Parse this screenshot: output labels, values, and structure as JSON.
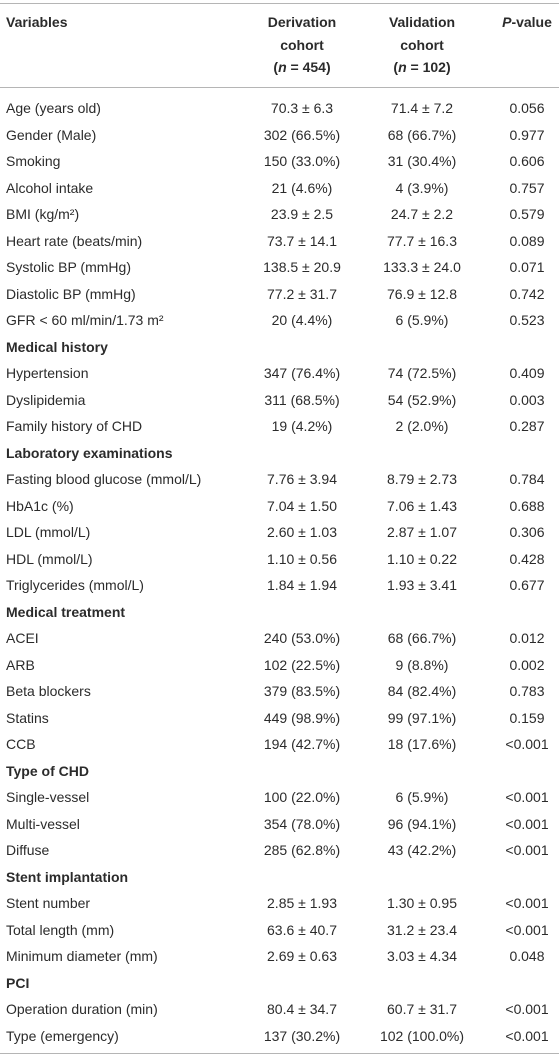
{
  "table": {
    "header": {
      "variables": "Variables",
      "derivation": {
        "line1": "Derivation",
        "line2": "cohort",
        "n_open": "(",
        "n": "n",
        "n_rest": " = 454)"
      },
      "validation": {
        "line1": "Validation",
        "line2": "cohort",
        "n_open": "(",
        "n": "n",
        "n_rest": " = 102)"
      },
      "pvalue": {
        "p": "P",
        "rest": "-value"
      }
    },
    "rows": [
      {
        "cells": [
          "Age (years old)",
          "70.3 ± 6.3",
          "71.4 ± 7.2",
          "0.056"
        ]
      },
      {
        "cells": [
          "Gender (Male)",
          "302 (66.5%)",
          "68 (66.7%)",
          "0.977"
        ]
      },
      {
        "cells": [
          "Smoking",
          "150 (33.0%)",
          "31 (30.4%)",
          "0.606"
        ]
      },
      {
        "cells": [
          "Alcohol intake",
          "21 (4.6%)",
          "4 (3.9%)",
          "0.757"
        ]
      },
      {
        "cells": [
          "BMI (kg/m²)",
          "23.9 ± 2.5",
          "24.7 ± 2.2",
          "0.579"
        ]
      },
      {
        "cells": [
          "Heart rate (beats/min)",
          "73.7 ± 14.1",
          "77.7 ± 16.3",
          "0.089"
        ]
      },
      {
        "cells": [
          "Systolic BP (mmHg)",
          "138.5 ± 20.9",
          "133.3 ± 24.0",
          "0.071"
        ]
      },
      {
        "cells": [
          "Diastolic BP (mmHg)",
          "77.2 ± 31.7",
          "76.9 ± 12.8",
          "0.742"
        ]
      },
      {
        "cells": [
          "GFR < 60 ml/min/1.73 m²",
          "20 (4.4%)",
          "6 (5.9%)",
          "0.523"
        ]
      },
      {
        "section": "Medical history"
      },
      {
        "cells": [
          "Hypertension",
          "347 (76.4%)",
          "74 (72.5%)",
          "0.409"
        ]
      },
      {
        "cells": [
          "Dyslipidemia",
          "311 (68.5%)",
          "54 (52.9%)",
          "0.003"
        ]
      },
      {
        "cells": [
          "Family history of CHD",
          "19 (4.2%)",
          "2 (2.0%)",
          "0.287"
        ]
      },
      {
        "section": "Laboratory examinations"
      },
      {
        "cells": [
          "Fasting blood glucose (mmol/L)",
          "7.76 ± 3.94",
          "8.79 ± 2.73",
          "0.784"
        ]
      },
      {
        "cells": [
          "HbA1c (%)",
          "7.04 ± 1.50",
          "7.06 ± 1.43",
          "0.688"
        ]
      },
      {
        "cells": [
          "LDL (mmol/L)",
          "2.60 ± 1.03",
          "2.87 ± 1.07",
          "0.306"
        ]
      },
      {
        "cells": [
          "HDL (mmol/L)",
          "1.10 ± 0.56",
          "1.10 ± 0.22",
          "0.428"
        ]
      },
      {
        "cells": [
          "Triglycerides (mmol/L)",
          "1.84 ± 1.94",
          "1.93 ± 3.41",
          "0.677"
        ]
      },
      {
        "section": "Medical treatment"
      },
      {
        "cells": [
          "ACEI",
          "240 (53.0%)",
          "68 (66.7%)",
          "0.012"
        ]
      },
      {
        "cells": [
          "ARB",
          "102 (22.5%)",
          "9 (8.8%)",
          "0.002"
        ]
      },
      {
        "cells": [
          "Beta blockers",
          "379 (83.5%)",
          "84 (82.4%)",
          "0.783"
        ]
      },
      {
        "cells": [
          "Statins",
          "449 (98.9%)",
          "99 (97.1%)",
          "0.159"
        ]
      },
      {
        "cells": [
          "CCB",
          "194 (42.7%)",
          "18 (17.6%)",
          "<0.001"
        ]
      },
      {
        "section": "Type of CHD"
      },
      {
        "cells": [
          "Single-vessel",
          "100 (22.0%)",
          "6 (5.9%)",
          "<0.001"
        ]
      },
      {
        "cells": [
          "Multi-vessel",
          "354 (78.0%)",
          "96 (94.1%)",
          "<0.001"
        ]
      },
      {
        "cells": [
          "Diffuse",
          "285 (62.8%)",
          "43 (42.2%)",
          "<0.001"
        ]
      },
      {
        "section": "Stent implantation"
      },
      {
        "cells": [
          "Stent number",
          "2.85 ± 1.93",
          "1.30 ± 0.95",
          "<0.001"
        ]
      },
      {
        "cells": [
          "Total length (mm)",
          "63.6 ± 40.7",
          "31.2 ± 23.4",
          "<0.001"
        ]
      },
      {
        "cells": [
          "Minimum diameter (mm)",
          "2.69 ± 0.63",
          "3.03 ± 4.34",
          "0.048"
        ]
      },
      {
        "section": "PCI"
      },
      {
        "cells": [
          "Operation duration (min)",
          "80.4 ± 34.7",
          "60.7 ± 31.7",
          "<0.001"
        ]
      },
      {
        "cells": [
          "Type (emergency)",
          "137 (30.2%)",
          "102 (100.0%)",
          "<0.001"
        ]
      }
    ]
  }
}
